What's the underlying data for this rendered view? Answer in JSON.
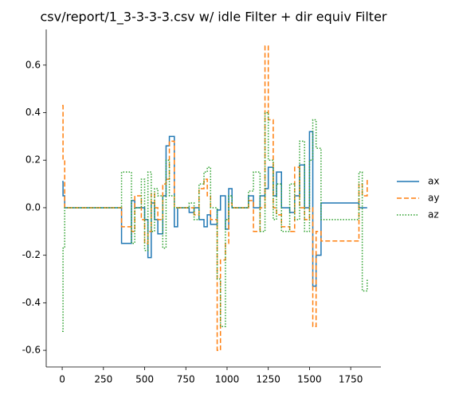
{
  "chart_data": {
    "type": "line",
    "title": "csv/report/1_3-3-3-3.csv w/ idle Filter + dir equiv Filter",
    "drawstyle": "steps-post",
    "x": [
      0,
      5,
      15,
      360,
      420,
      440,
      480,
      500,
      520,
      540,
      560,
      580,
      610,
      630,
      650,
      680,
      700,
      770,
      800,
      830,
      860,
      880,
      900,
      940,
      960,
      990,
      1010,
      1030,
      1130,
      1160,
      1200,
      1230,
      1250,
      1280,
      1300,
      1330,
      1380,
      1410,
      1440,
      1470,
      1500,
      1520,
      1540,
      1570,
      1800,
      1820,
      1850
    ],
    "series": [
      {
        "name": "ax",
        "color": "#1f77b4",
        "dash": "none",
        "values": [
          0.11,
          0.05,
          0,
          -0.15,
          0.03,
          0,
          0,
          -0.05,
          -0.21,
          0.02,
          -0.05,
          -0.11,
          0.05,
          0.26,
          0.3,
          -0.08,
          0,
          -0.02,
          0,
          -0.05,
          -0.08,
          -0.03,
          -0.07,
          -0.01,
          0.05,
          -0.09,
          0.08,
          0,
          0.05,
          0,
          0.05,
          0.08,
          0.17,
          0.05,
          0.15,
          0,
          -0.02,
          0.05,
          0.18,
          0,
          0.32,
          -0.33,
          -0.2,
          0.02,
          0,
          0,
          0
        ]
      },
      {
        "name": "ay",
        "color": "#ff7f0e",
        "dash": "6,3",
        "values": [
          0.43,
          0.2,
          0,
          -0.08,
          -0.1,
          0.05,
          -0.05,
          -0.15,
          -0.1,
          0.06,
          0,
          -0.05,
          0.1,
          0.12,
          0.28,
          0,
          0,
          0,
          -0.03,
          0.08,
          0.12,
          0.05,
          -0.05,
          -0.6,
          -0.22,
          -0.15,
          0.02,
          0,
          0.03,
          -0.1,
          0,
          0.68,
          0.37,
          0,
          -0.03,
          -0.08,
          -0.1,
          0.17,
          0,
          -0.05,
          0,
          -0.5,
          -0.1,
          -0.14,
          0.1,
          0.05,
          0.12
        ]
      },
      {
        "name": "az",
        "color": "#2ca02c",
        "dash": "1.5,2",
        "values": [
          -0.52,
          -0.17,
          0,
          0.15,
          -0.15,
          0,
          0.12,
          -0.18,
          0.15,
          -0.1,
          0.08,
          0.05,
          -0.17,
          0.2,
          0.05,
          0,
          0,
          0.02,
          -0.05,
          0.1,
          0.15,
          0.17,
          0,
          -0.3,
          -0.5,
          -0.05,
          0.05,
          0,
          0.07,
          0.15,
          -0.1,
          0.4,
          0.2,
          -0.05,
          0.1,
          -0.1,
          0.1,
          -0.05,
          0.28,
          -0.1,
          0.2,
          0.37,
          0.25,
          -0.05,
          0.15,
          -0.35,
          -0.3
        ]
      }
    ],
    "xlim": [
      -97,
      1933
    ],
    "ylim": [
      -0.67,
      0.75
    ],
    "xticks": [
      0,
      250,
      500,
      750,
      1000,
      1250,
      1500,
      1750
    ],
    "yticks": [
      -0.6,
      -0.4,
      -0.2,
      {
        "value": 0,
        "label": "0.0"
      },
      0.2,
      0.4,
      0.6
    ],
    "legend": "right"
  }
}
